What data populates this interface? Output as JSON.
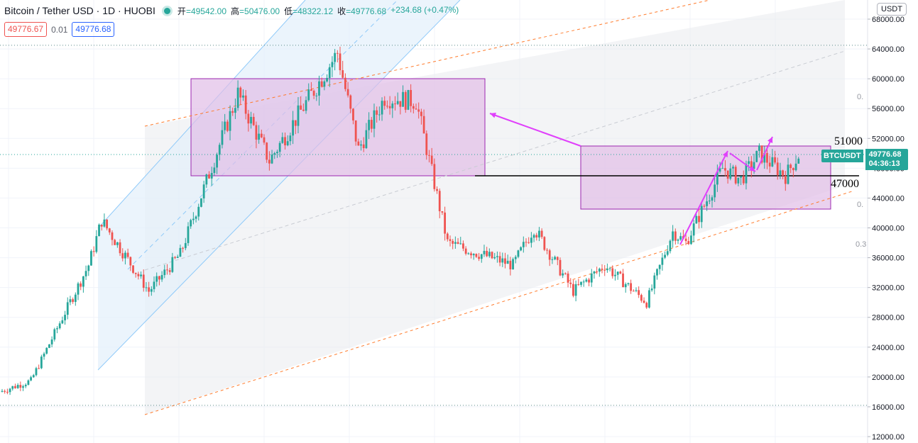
{
  "header": {
    "symbol": "Bitcoin / Tether USD · 1D · HUOBI",
    "open_label": "开",
    "open": "=49542.00",
    "high_label": "高",
    "high": "=50476.00",
    "low_label": "低",
    "low": "=48322.12",
    "close_label": "收",
    "close": "=49776.68",
    "change": "+234.68 (+0.47%)"
  },
  "trade": {
    "sell": "49776.67",
    "spread": "0.01",
    "buy": "49776.68"
  },
  "currency_button": "USDT",
  "last_price": {
    "symbol": "BTCUSDT",
    "price": "49776.68",
    "countdown": "04:36:13"
  },
  "colors": {
    "up": "#26a69a",
    "down": "#ef5350",
    "box_fill": "#e1bee7",
    "box_stroke": "#9c27b0",
    "arrow": "#e040fb",
    "channel": "#90caf9",
    "trend": "#ff7b2c"
  },
  "chart_data": {
    "type": "candlestick",
    "y_axis_ticks": [
      "68000.00",
      "64000.00",
      "60000.00",
      "56000.00",
      "52000.00",
      "48000.00",
      "44000.00",
      "40000.00",
      "36000.00",
      "32000.00",
      "28000.00",
      "24000.00",
      "20000.00",
      "16000.00",
      "12000.00"
    ],
    "ylim": [
      11500,
      69500
    ],
    "grid": true,
    "annotations": {
      "levels": [
        "51000",
        "47000"
      ],
      "fib_labels": [
        "0.",
        "0.",
        "0.3"
      ]
    },
    "segments": [
      {
        "start": 18000,
        "end": 19500,
        "n": 12
      },
      {
        "start": 19500,
        "end": 35000,
        "n": 22
      },
      {
        "start": 35000,
        "end": 41000,
        "n": 5
      },
      {
        "start": 41000,
        "end": 31500,
        "n": 18
      },
      {
        "start": 31500,
        "end": 36500,
        "n": 12
      },
      {
        "start": 36500,
        "end": 58000,
        "n": 22
      },
      {
        "start": 58000,
        "end": 49000,
        "n": 12
      },
      {
        "start": 49000,
        "end": 59000,
        "n": 18
      },
      {
        "start": 59000,
        "end": 63500,
        "n": 8
      },
      {
        "start": 63500,
        "end": 50500,
        "n": 8
      },
      {
        "start": 50500,
        "end": 57500,
        "n": 10
      },
      {
        "start": 57500,
        "end": 57000,
        "n": 12
      },
      {
        "start": 57000,
        "end": 38000,
        "n": 12
      },
      {
        "start": 38000,
        "end": 35000,
        "n": 25
      },
      {
        "start": 35000,
        "end": 40000,
        "n": 8
      },
      {
        "start": 40000,
        "end": 31500,
        "n": 15
      },
      {
        "start": 31500,
        "end": 35000,
        "n": 12
      },
      {
        "start": 35000,
        "end": 30000,
        "n": 16
      },
      {
        "start": 30000,
        "end": 39500,
        "n": 10
      },
      {
        "start": 39500,
        "end": 38000,
        "n": 5
      },
      {
        "start": 38000,
        "end": 48000,
        "n": 14
      },
      {
        "start": 48000,
        "end": 46500,
        "n": 7
      },
      {
        "start": 46500,
        "end": 50000,
        "n": 7
      },
      {
        "start": 50000,
        "end": 47000,
        "n": 10
      },
      {
        "start": 47000,
        "end": 49776,
        "n": 5
      }
    ]
  }
}
